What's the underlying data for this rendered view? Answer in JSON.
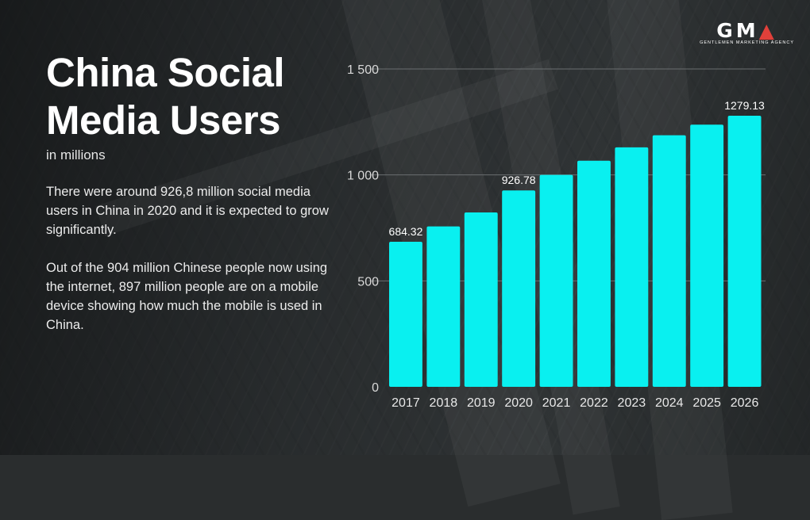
{
  "slide": {
    "title_line1": "China Social",
    "title_line2": "Media Users",
    "subtitle": "in millions",
    "paragraph1": "There were around 926,8 million social media users in China in 2020 and it is expected to grow significantly.",
    "paragraph2": "Out of the 904 million Chinese people now using the internet, 897 million people are on a mobile device showing how much the mobile is used in China."
  },
  "logo": {
    "main": "GMA",
    "sub": "GENTLEMEN MARKETING AGENCY"
  },
  "colors": {
    "bar": "#09f0f0",
    "grid": "#6a6e70",
    "accent": "#e0403a"
  },
  "chart_data": {
    "type": "bar",
    "title": "China Social Media Users",
    "ylabel": "in millions",
    "categories": [
      "2017",
      "2018",
      "2019",
      "2020",
      "2021",
      "2022",
      "2023",
      "2024",
      "2025",
      "2026"
    ],
    "values": [
      684.32,
      757,
      823,
      926.78,
      1000,
      1067,
      1130,
      1187,
      1237,
      1279.13
    ],
    "data_labels": {
      "0": "684.32",
      "3": "926.78",
      "9": "1279.13"
    },
    "ylim": [
      0,
      1500
    ],
    "yticks": [
      0,
      500,
      1000,
      1500
    ],
    "ytick_labels": [
      "0",
      "500",
      "1 000",
      "1 500"
    ]
  }
}
